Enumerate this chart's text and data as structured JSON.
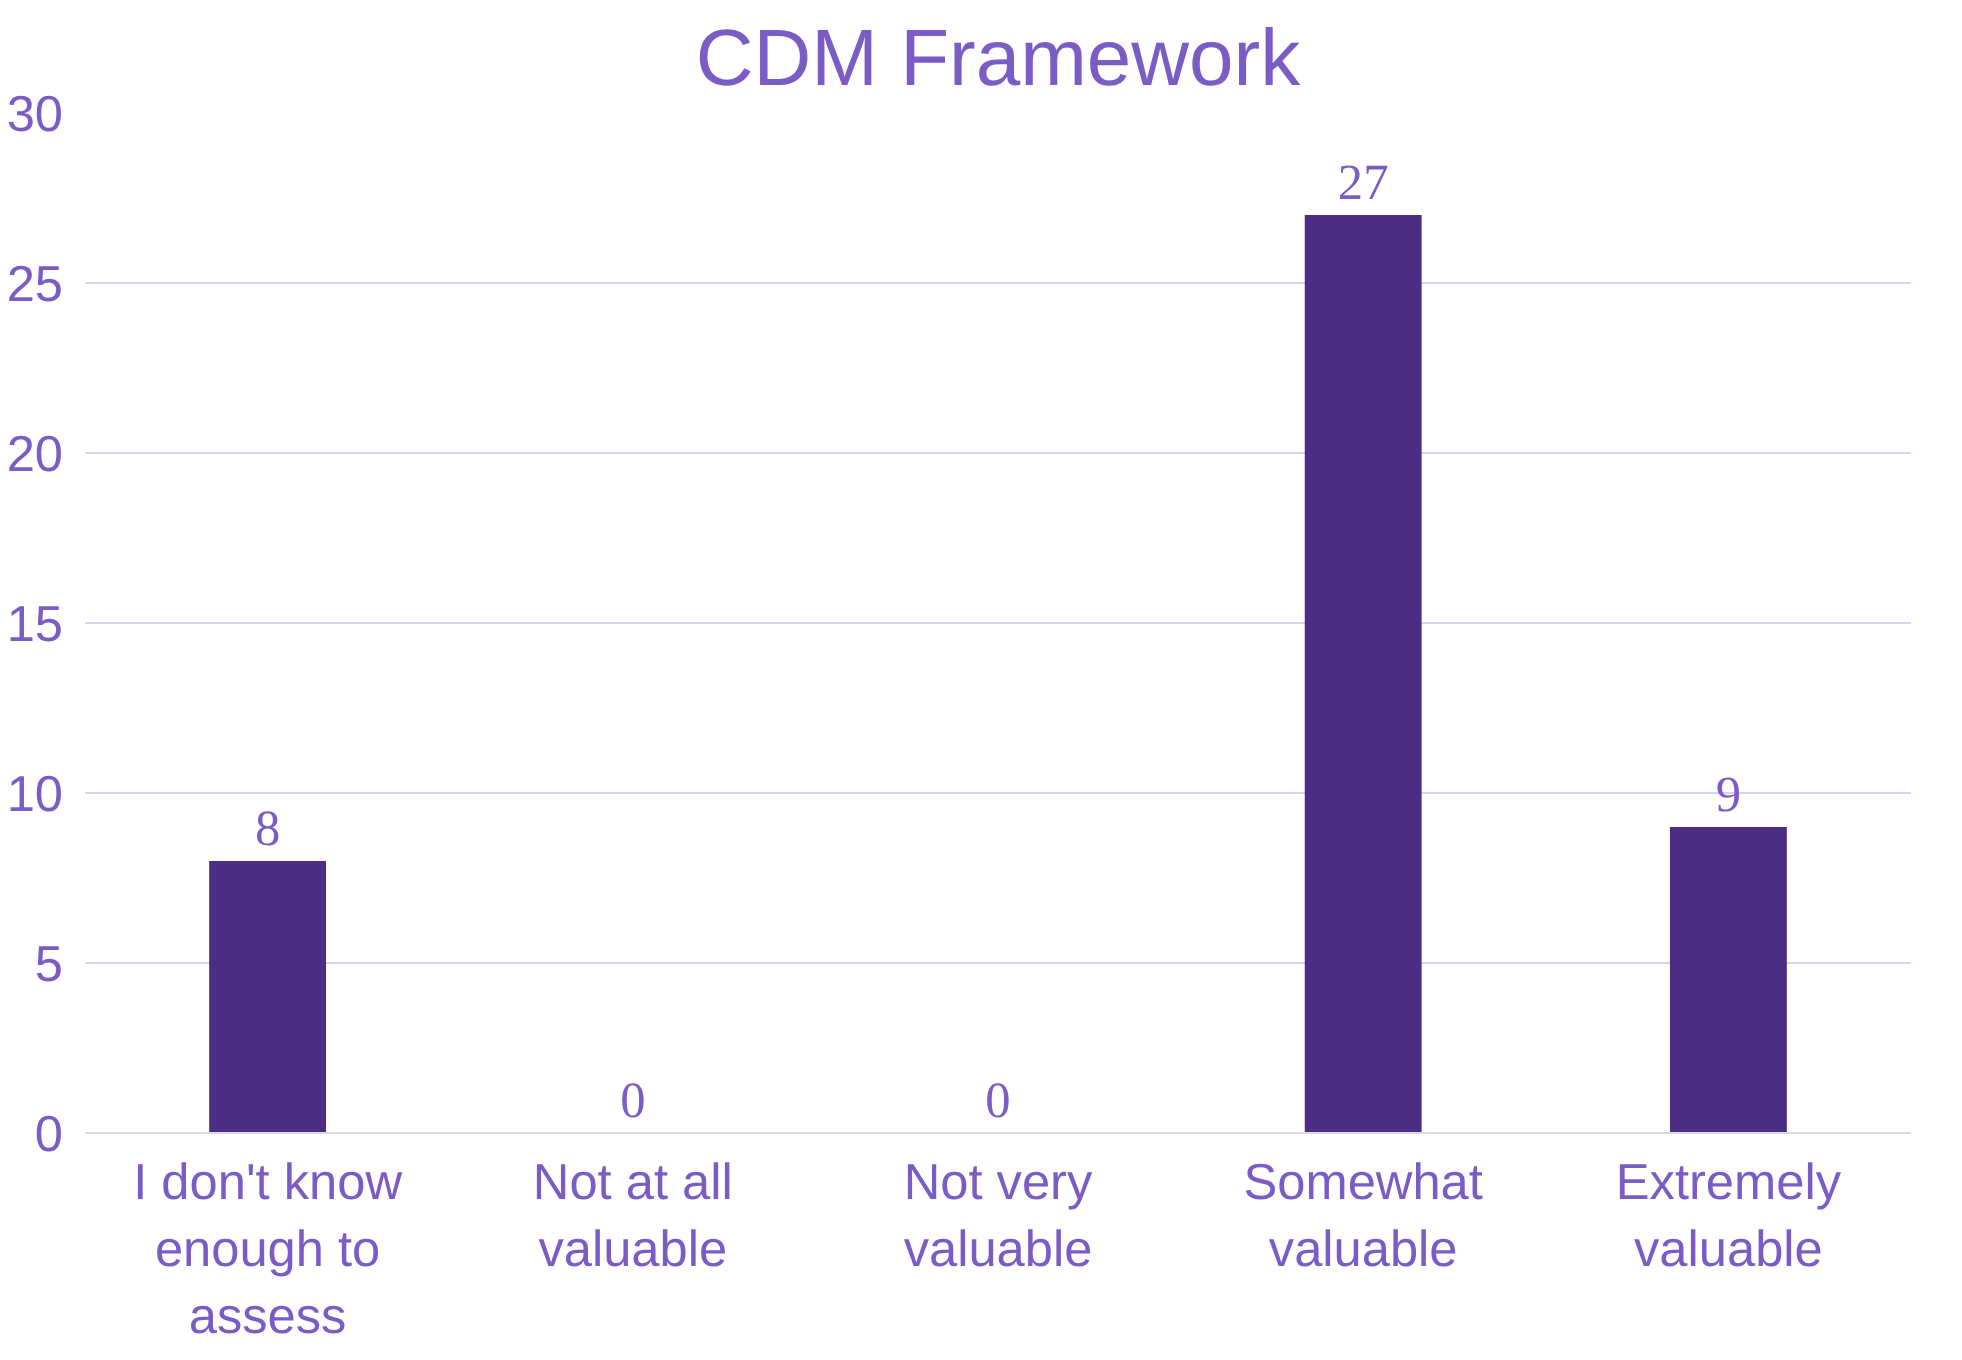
{
  "chart_data": {
    "type": "bar",
    "title": "CDM Framework",
    "categories": [
      "I don't know enough to assess",
      "Not at all valuable",
      "Not very valuable",
      "Somewhat valuable",
      "Extremely valuable"
    ],
    "values": [
      8,
      0,
      0,
      27,
      9
    ],
    "color": "#4b2e83",
    "ylim": [
      0,
      30
    ],
    "yticks": [
      0,
      5,
      10,
      15,
      20,
      25,
      30
    ],
    "grid": "y",
    "data_labels": true
  }
}
